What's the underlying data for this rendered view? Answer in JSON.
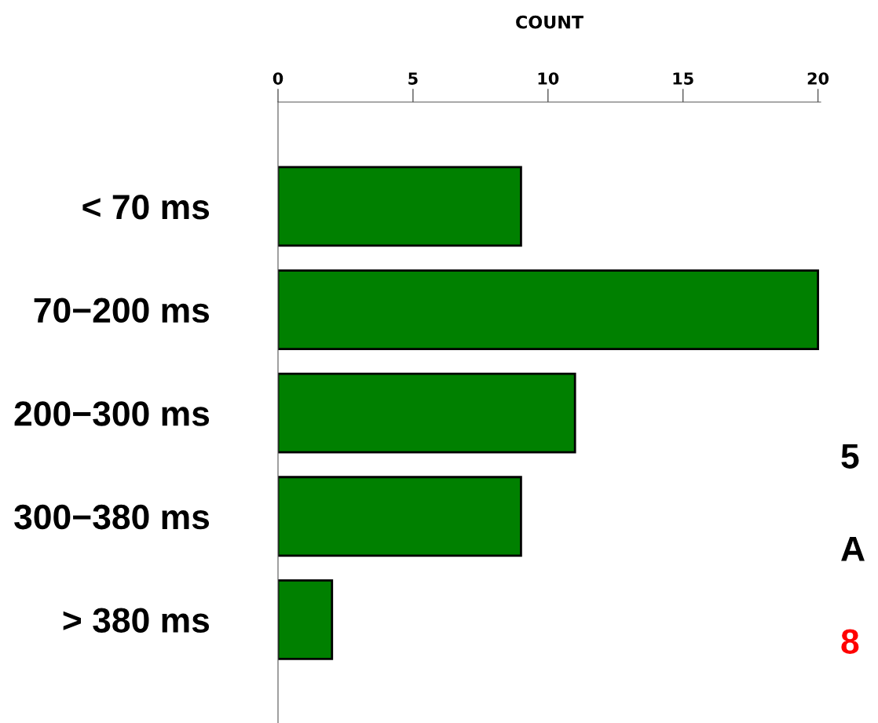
{
  "chart_data": {
    "type": "bar",
    "orientation": "horizontal",
    "xlabel": "COUNT",
    "categories": [
      "< 70 ms",
      "70−200 ms",
      "200−300 ms",
      "300−380 ms",
      "> 380 ms"
    ],
    "values": [
      9,
      20,
      11,
      9,
      2
    ],
    "color": "#008000",
    "xlim": [
      0,
      20.1
    ],
    "xticks": [
      0,
      5,
      10,
      15,
      20
    ],
    "grid": false,
    "annotations": [
      "5",
      "A",
      "8"
    ]
  }
}
